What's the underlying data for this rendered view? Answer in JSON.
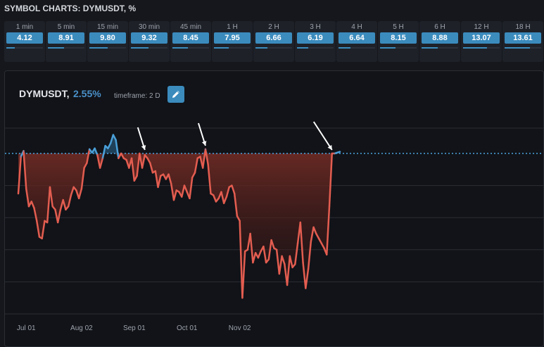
{
  "page_title": "SYMBOL CHARTS: DYMUSDT, %",
  "timeframes": [
    {
      "label": "1 min",
      "value": "4.12",
      "fill": 0.24
    },
    {
      "label": "5 min",
      "value": "8.91",
      "fill": 0.45
    },
    {
      "label": "15 min",
      "value": "9.80",
      "fill": 0.5
    },
    {
      "label": "30 min",
      "value": "9.32",
      "fill": 0.48
    },
    {
      "label": "45 min",
      "value": "8.45",
      "fill": 0.43
    },
    {
      "label": "1 H",
      "value": "7.95",
      "fill": 0.4
    },
    {
      "label": "2 H",
      "value": "6.66",
      "fill": 0.33
    },
    {
      "label": "3 H",
      "value": "6.19",
      "fill": 0.31
    },
    {
      "label": "4 H",
      "value": "6.64",
      "fill": 0.33
    },
    {
      "label": "5 H",
      "value": "8.15",
      "fill": 0.42
    },
    {
      "label": "6 H",
      "value": "8.88",
      "fill": 0.45
    },
    {
      "label": "12 H",
      "value": "13.07",
      "fill": 0.66
    },
    {
      "label": "18 H",
      "value": "13.61",
      "fill": 0.69
    }
  ],
  "chart_header": {
    "symbol": "DYMUSDT,",
    "percent": "2.55%",
    "timeframe": "timeframe: 2 D"
  },
  "colors": {
    "accent": "#3b8bbd",
    "positive_line": "#4a9fd8",
    "negative_line": "#e35d50",
    "baseline": "#4aa3df"
  },
  "icons": {
    "edit": "pencil-icon",
    "annotation_arrow": "arrow-down-icon"
  },
  "chart_data": {
    "type": "area",
    "title": "DYMUSDT",
    "x_ticks": [
      "Jul 01",
      "Aug 02",
      "Sep 01",
      "Oct 01",
      "Nov 02"
    ],
    "tick_positions": [
      3,
      24,
      44,
      64,
      84
    ],
    "baseline_value": 0,
    "y_range": [
      -10,
      4
    ],
    "y_grid": [
      3,
      0,
      -2,
      -4,
      -6,
      -8,
      -10
    ],
    "grid": true,
    "annotations": [
      {
        "x": 48,
        "label": "peak"
      },
      {
        "x": 71,
        "label": "peak"
      },
      {
        "x": 119,
        "label": "peak"
      }
    ],
    "series": [
      {
        "values": [
          -2.5,
          -0.2,
          0.3,
          -2.2,
          -3.3,
          -3.0,
          -3.4,
          -4.2,
          -5.2,
          -5.3,
          -4.2,
          -4.3,
          -2.1,
          -3.3,
          -3.5,
          -4.3,
          -3.5,
          -2.9,
          -3.5,
          -3.3,
          -2.6,
          -2.1,
          -2.3,
          -2.8,
          -2.2,
          -0.9,
          -0.6,
          0.5,
          0.1,
          0.6,
          -0.1,
          -0.9,
          -0.3,
          0.9,
          0.6,
          1.2,
          2.2,
          1.6,
          -0.3,
          0.0,
          -0.3,
          -0.4,
          -0.9,
          -0.3,
          -1.7,
          -1.4,
          0.0,
          -0.9,
          -0.1,
          -0.3,
          -0.6,
          -1.2,
          -1.1,
          -2.1,
          -1.4,
          -1.3,
          -1.6,
          -1.3,
          -1.9,
          -2.9,
          -2.3,
          -2.4,
          -2.7,
          -2.0,
          -2.4,
          -2.8,
          -1.5,
          -1.2,
          -0.3,
          -0.2,
          -0.9,
          0.5,
          -0.7,
          -2.5,
          -2.6,
          -3.0,
          -2.8,
          -2.4,
          -3.1,
          -2.7,
          -2.1,
          -2.0,
          -2.5,
          -3.9,
          -4.2,
          -9.0,
          -6.1,
          -6.0,
          -5.0,
          -6.8,
          -6.2,
          -6.5,
          -6.1,
          -5.8,
          -6.8,
          -6.6,
          -5.4,
          -5.9,
          -6.0,
          -7.5,
          -6.4,
          -6.9,
          -8.2,
          -6.4,
          -7.1,
          -6.9,
          -5.6,
          -4.3,
          -6.8,
          -8.4,
          -7.2,
          -5.5,
          -4.6,
          -5.0,
          -5.3,
          -5.6,
          -5.9,
          -6.3,
          -3.3,
          0.0,
          0.0,
          0.1,
          0.2
        ]
      }
    ]
  }
}
